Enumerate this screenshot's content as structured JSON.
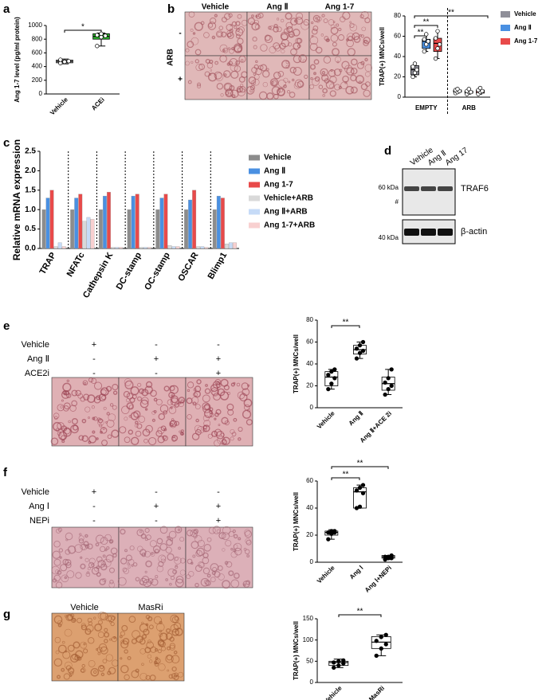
{
  "panels": {
    "letters": [
      "a",
      "b",
      "c",
      "d",
      "e",
      "f",
      "g"
    ],
    "b_images": {
      "columns": [
        "Vehicle",
        "Ang Ⅱ",
        "Ang 1-7"
      ],
      "row_title": "ARB",
      "rows": [
        "-",
        "+"
      ]
    },
    "d_blot": {
      "lanes": [
        "Vehicle",
        "Ang Ⅱ",
        "Ang 17"
      ],
      "markers": [
        "60 kDa",
        "#",
        "40 kDa"
      ],
      "bands": [
        "TRAF6",
        "β-actin"
      ]
    },
    "e_treatments": [
      {
        "label": "Vehicle",
        "signs": [
          "+",
          "-",
          "-"
        ]
      },
      {
        "label": "Ang Ⅱ",
        "signs": [
          "-",
          "+",
          "+"
        ]
      },
      {
        "label": "ACE2i",
        "signs": [
          "-",
          "-",
          "+"
        ]
      }
    ],
    "f_treatments": [
      {
        "label": "Vehicle",
        "signs": [
          "+",
          "-",
          "-"
        ]
      },
      {
        "label": "Ang Ⅰ",
        "signs": [
          "-",
          "+",
          "+"
        ]
      },
      {
        "label": "NEPi",
        "signs": [
          "-",
          "-",
          "+"
        ]
      }
    ],
    "g_images": {
      "columns": [
        "Vehicle",
        "MasRi"
      ]
    }
  },
  "chart_data": [
    {
      "type": "box",
      "ylabel": "Ang 1-7 level (pg/ml protein)",
      "categories": [
        "Vehicle",
        "ACEi"
      ],
      "colors": [
        "#cccccc",
        "#2db82d"
      ],
      "point_fill": "#ffffff",
      "boxes": [
        {
          "min": 440,
          "q1": 455,
          "median": 475,
          "q3": 495,
          "max": 510
        },
        {
          "min": 700,
          "q1": 800,
          "median": 840,
          "q3": 880,
          "max": 890
        }
      ],
      "points": [
        [
          450,
          470,
          480,
          500
        ],
        [
          700,
          830,
          850,
          860,
          880
        ]
      ],
      "ylim": [
        0,
        1000
      ],
      "yticks": [
        0,
        200,
        400,
        600,
        800,
        1000
      ],
      "annotations": [
        "*"
      ]
    },
    {
      "type": "box",
      "ylabel": "TRAP(+) MNCs/well",
      "categories": [
        "EMPTY",
        "ARB"
      ],
      "point_fill": "#ffffff",
      "series": [
        {
          "name": "Vehicle",
          "color": "#8f8f99",
          "boxes": [
            {
              "min": 20,
              "q1": 22,
              "median": 27,
              "q3": 31,
              "max": 33
            },
            {
              "min": 4,
              "q1": 5,
              "median": 6,
              "q3": 7,
              "max": 8
            }
          ],
          "points": [
            [
              20,
              24,
              27,
              30,
              33
            ],
            [
              4,
              5,
              6,
              7,
              8
            ]
          ]
        },
        {
          "name": "Ang Ⅱ",
          "color": "#4a90e2",
          "boxes": [
            {
              "min": 45,
              "q1": 48,
              "median": 55,
              "q3": 57,
              "max": 62
            },
            {
              "min": 3,
              "q1": 4,
              "median": 5,
              "q3": 6,
              "max": 8
            }
          ],
          "points": [
            [
              45,
              52,
              55,
              57,
              62
            ],
            [
              3,
              5,
              5,
              6,
              8
            ]
          ]
        },
        {
          "name": "Ang 1-7",
          "color": "#e84a4a",
          "boxes": [
            {
              "min": 38,
              "q1": 45,
              "median": 53,
              "q3": 58,
              "max": 65
            },
            {
              "min": 3,
              "q1": 4,
              "median": 6,
              "q3": 7,
              "max": 9
            }
          ],
          "points": [
            [
              38,
              48,
              52,
              58,
              65
            ],
            [
              3,
              5,
              6,
              7,
              9
            ]
          ]
        }
      ],
      "ylim": [
        0,
        80
      ],
      "yticks": [
        0,
        20,
        40,
        60,
        80
      ],
      "legend": "right",
      "annotations": [
        "**",
        "**",
        "**"
      ]
    },
    {
      "type": "bar",
      "ylabel": "Relative mRNA expression",
      "categories": [
        "TRAP",
        "NFATc",
        "Cathepsin K",
        "DC-stamp",
        "OC-stamp",
        "OSCAR",
        "Blimp1"
      ],
      "series": [
        {
          "name": "Vehicle",
          "color": "#8c8c8c",
          "values": [
            1.0,
            1.0,
            1.0,
            1.0,
            1.0,
            1.0,
            1.0
          ]
        },
        {
          "name": "Ang Ⅱ",
          "color": "#4a90e2",
          "values": [
            1.3,
            1.3,
            1.35,
            1.35,
            1.3,
            1.25,
            1.35
          ]
        },
        {
          "name": "Ang 1-7",
          "color": "#e84a4a",
          "values": [
            1.5,
            1.4,
            1.45,
            1.4,
            1.4,
            1.5,
            1.3
          ]
        },
        {
          "name": "Vehicle+ARB",
          "color": "#d9d9d9",
          "values": [
            0.05,
            0.7,
            0.03,
            0.03,
            0.08,
            0.05,
            0.12
          ]
        },
        {
          "name": "Ang Ⅱ+ARB",
          "color": "#c6dbf7",
          "values": [
            0.15,
            0.8,
            0.03,
            0.03,
            0.05,
            0.05,
            0.15
          ]
        },
        {
          "name": "Ang 1-7+ARB",
          "color": "#f8d0d0",
          "values": [
            0.05,
            0.75,
            0.03,
            0.03,
            0.05,
            0.03,
            0.15
          ]
        }
      ],
      "ylim": [
        0,
        2.5
      ],
      "yticks": [
        {
          "value": 0,
          "label": "0.0"
        },
        {
          "value": 0.5,
          "label": "0.5"
        },
        {
          "value": 1,
          "label": "1.0"
        },
        {
          "value": 1.5,
          "label": "1.5"
        },
        {
          "value": 2,
          "label": "2.0"
        },
        {
          "value": 2.5,
          "label": "2.5"
        }
      ],
      "legend": "right"
    },
    {
      "type": "box",
      "ylabel": "TRAP(+) MNCs/well",
      "categories": [
        "Vehicle",
        "Ang Ⅱ",
        "Ang Ⅱ+ACE 2i"
      ],
      "color": "#ffffff",
      "point_fill": "#000000",
      "boxes": [
        {
          "min": 17,
          "q1": 20,
          "median": 28,
          "q3": 33,
          "max": 35
        },
        {
          "min": 45,
          "q1": 49,
          "median": 53,
          "q3": 57,
          "max": 60
        },
        {
          "min": 12,
          "q1": 16,
          "median": 22,
          "q3": 28,
          "max": 35
        }
      ],
      "points": [
        [
          17,
          22,
          27,
          30,
          33,
          35
        ],
        [
          45,
          50,
          52,
          54,
          57,
          60
        ],
        [
          12,
          17,
          20,
          23,
          27,
          35
        ]
      ],
      "ylim": [
        0,
        80
      ],
      "yticks": [
        0,
        20,
        40,
        60,
        80
      ],
      "annotations": [
        "**"
      ]
    },
    {
      "type": "box",
      "ylabel": "TRAP(+) MNCs/well",
      "categories": [
        "Vehicle",
        "Ang Ⅰ",
        "Ang Ⅰ+NEPi"
      ],
      "color": "#ffffff",
      "point_fill": "#000000",
      "boxes": [
        {
          "min": 17,
          "q1": 20,
          "median": 22,
          "q3": 23,
          "max": 24
        },
        {
          "min": 40,
          "q1": 40,
          "median": 52,
          "q3": 55,
          "max": 57
        },
        {
          "min": 2,
          "q1": 3,
          "median": 4,
          "q3": 5,
          "max": 5
        }
      ],
      "points": [
        [
          17,
          21,
          22,
          22,
          23,
          23
        ],
        [
          40,
          41,
          51,
          53,
          55,
          57
        ],
        [
          2,
          3,
          3,
          4,
          4,
          5
        ]
      ],
      "ylim": [
        0,
        60
      ],
      "yticks": [
        0,
        20,
        40,
        60
      ],
      "annotations": [
        "**",
        "**"
      ]
    },
    {
      "type": "box",
      "ylabel": "TRAP(+) MNCs/well",
      "categories": [
        "Vehicle",
        "MasRi"
      ],
      "color": "#ffffff",
      "point_fill": "#000000",
      "boxes": [
        {
          "min": 35,
          "q1": 40,
          "median": 47,
          "q3": 50,
          "max": 55
        },
        {
          "min": 63,
          "q1": 80,
          "median": 95,
          "q3": 108,
          "max": 112
        }
      ],
      "points": [
        [
          35,
          40,
          45,
          47,
          50,
          52
        ],
        [
          63,
          80,
          90,
          98,
          107,
          112
        ]
      ],
      "ylim": [
        0,
        150
      ],
      "yticks": [
        0,
        50,
        100,
        150
      ],
      "annotations": [
        "**"
      ]
    }
  ]
}
